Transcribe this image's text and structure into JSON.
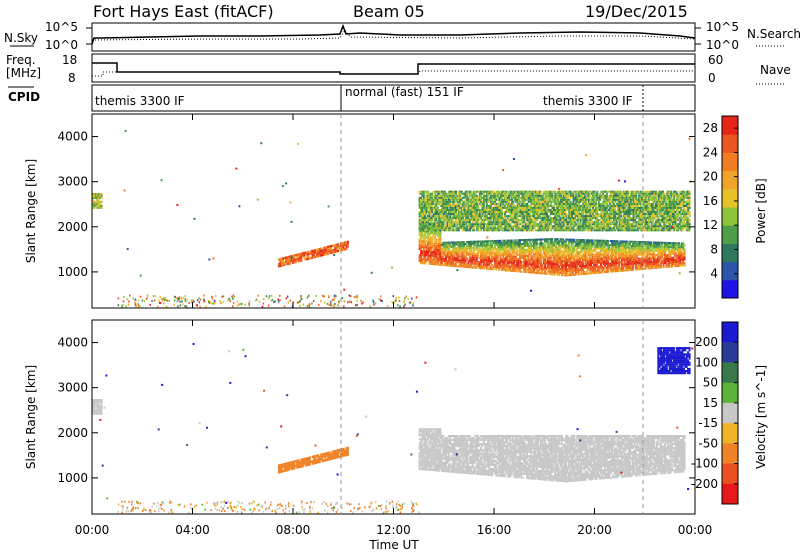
{
  "header": {
    "radar": "Fort Hays East (fitACF)",
    "beam": "Beam 05",
    "date": "19/Dec/2015"
  },
  "noise_panel": {
    "left_label": "N.Sky",
    "right_label": "N.Search",
    "left_ticks": [
      "10^5",
      "10^0"
    ],
    "right_ticks": [
      "10^5",
      "10^0"
    ]
  },
  "freq_panel": {
    "left_label_1": "Freq.",
    "left_label_2": "[MHz]",
    "right_label": "Nave",
    "left_ticks": [
      "18",
      "8"
    ],
    "right_ticks": [
      "60",
      "0"
    ]
  },
  "cpid_panel": {
    "label": "CPID",
    "segments": [
      {
        "text": "themis 3300 IF",
        "t_start": 0,
        "t_end": 10
      },
      {
        "text": "normal (fast) 151 IF",
        "t_start": 10,
        "t_end": 22
      },
      {
        "text": "themis 3300 IF",
        "t_start": 22,
        "t_end": 24
      }
    ]
  },
  "chart_data": [
    {
      "type": "heatmap",
      "title": "",
      "xlabel": "Time UT",
      "ylabel": "Slant Range [km]",
      "xlim": [
        0,
        24
      ],
      "ylim": [
        200,
        4500
      ],
      "x_ticks": [
        "00:00",
        "04:00",
        "08:00",
        "12:00",
        "16:00",
        "20:00",
        "00:00"
      ],
      "y_ticks": [
        1000,
        2000,
        3000,
        4000
      ],
      "colorbar": {
        "label": "Power [dB]",
        "ticks": [
          4,
          8,
          12,
          16,
          20,
          24,
          28
        ],
        "range": [
          0,
          30
        ],
        "colors": [
          "#1e14e6",
          "#2a55a8",
          "#2f7a5e",
          "#4f9e48",
          "#8bc63a",
          "#e6c228",
          "#f2a42a",
          "#f07d22",
          "#ec5620",
          "#e62518"
        ]
      },
      "features": [
        {
          "name": "early echo",
          "t": [
            0.0,
            0.4
          ],
          "range": [
            2400,
            2750
          ],
          "value": 14
        },
        {
          "name": "sloping band",
          "t": [
            7.4,
            10.2
          ],
          "range": [
            1100,
            1500
          ],
          "value": 24
        },
        {
          "name": "main ionospheric scatter",
          "t": [
            13.0,
            23.6
          ],
          "range": [
            850,
            1800
          ],
          "value": 26
        },
        {
          "name": "upper band",
          "t": [
            13.0,
            23.8
          ],
          "range": [
            1900,
            2800
          ],
          "value": 12
        }
      ]
    },
    {
      "type": "heatmap",
      "title": "",
      "xlabel": "Time UT",
      "ylabel": "Slant Range [km]",
      "xlim": [
        0,
        24
      ],
      "ylim": [
        200,
        4500
      ],
      "x_ticks": [
        "00:00",
        "04:00",
        "08:00",
        "12:00",
        "16:00",
        "20:00",
        "00:00"
      ],
      "y_ticks": [
        1000,
        2000,
        3000,
        4000
      ],
      "colorbar": {
        "label": "Velocity [m s^-1]",
        "ticks": [
          200,
          100,
          50,
          15,
          -15,
          -50,
          -100,
          -200
        ],
        "colors": [
          "#1a1ad2",
          "#2a3c9a",
          "#3a7a4a",
          "#5ab43a",
          "#c8c8c8",
          "#f0b428",
          "#f08228",
          "#ec5020",
          "#e61818"
        ]
      },
      "features": [
        {
          "name": "early echo",
          "t": [
            0.0,
            0.4
          ],
          "range": [
            2400,
            2750
          ],
          "value": 0
        },
        {
          "name": "sloping band",
          "t": [
            7.4,
            10.2
          ],
          "range": [
            1100,
            1500
          ],
          "value": -60
        },
        {
          "name": "main ionospheric scatter",
          "t": [
            13.0,
            23.6
          ],
          "range": [
            850,
            2000
          ],
          "value": 0
        },
        {
          "name": "high range echoes",
          "t": [
            22.5,
            23.8
          ],
          "range": [
            3300,
            3900
          ],
          "value": 200
        }
      ]
    }
  ]
}
